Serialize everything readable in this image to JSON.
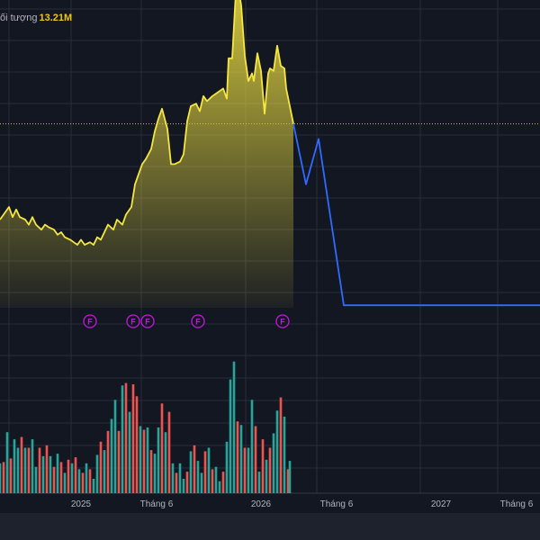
{
  "legend": {
    "label": "ối tượng",
    "value": "13.21M"
  },
  "colors": {
    "background": "#131722",
    "grid": "#2a2e39",
    "price_line": "#f5e642",
    "forecast_line": "#2f6bff",
    "marker": "#c21bd8",
    "vol_up": "#26a69a",
    "vol_down": "#ef5350",
    "reference_line": "#d8c23a",
    "axis_text": "#b2b5be"
  },
  "chart_data": {
    "type": "area",
    "title": "",
    "xlabel": "",
    "ylabel": "",
    "x_range": [
      2024.55,
      2027.55
    ],
    "price_range": [
      0,
      100
    ],
    "volume_range": [
      0,
      100
    ],
    "x_ticks": [
      {
        "label": "2025",
        "x": 2025.0
      },
      {
        "label": "Tháng 6",
        "x": 2025.42
      },
      {
        "label": "2026",
        "x": 2026.0
      },
      {
        "label": "Tháng 6",
        "x": 2026.42
      },
      {
        "label": "2027",
        "x": 2027.0
      },
      {
        "label": "Tháng 6",
        "x": 2027.42
      }
    ],
    "price_series": [
      [
        2024.55,
        35
      ],
      [
        2024.57,
        37
      ],
      [
        2024.6,
        40
      ],
      [
        2024.62,
        36
      ],
      [
        2024.64,
        39
      ],
      [
        2024.66,
        36
      ],
      [
        2024.69,
        35
      ],
      [
        2024.71,
        33
      ],
      [
        2024.73,
        36
      ],
      [
        2024.75,
        33
      ],
      [
        2024.78,
        31
      ],
      [
        2024.8,
        33
      ],
      [
        2024.82,
        32
      ],
      [
        2024.85,
        31
      ],
      [
        2024.87,
        29
      ],
      [
        2024.89,
        30
      ],
      [
        2024.91,
        28
      ],
      [
        2024.94,
        27
      ],
      [
        2024.96,
        26
      ],
      [
        2024.98,
        25
      ],
      [
        2025.0,
        27
      ],
      [
        2025.02,
        25
      ],
      [
        2025.05,
        26
      ],
      [
        2025.07,
        25
      ],
      [
        2025.09,
        28
      ],
      [
        2025.11,
        27
      ],
      [
        2025.13,
        30
      ],
      [
        2025.15,
        33
      ],
      [
        2025.18,
        31
      ],
      [
        2025.2,
        35
      ],
      [
        2025.23,
        33
      ],
      [
        2025.25,
        37
      ],
      [
        2025.28,
        40
      ],
      [
        2025.3,
        49
      ],
      [
        2025.32,
        53
      ],
      [
        2025.34,
        57
      ],
      [
        2025.36,
        59
      ],
      [
        2025.39,
        63
      ],
      [
        2025.41,
        70
      ],
      [
        2025.43,
        75
      ],
      [
        2025.45,
        79
      ],
      [
        2025.48,
        71
      ],
      [
        2025.5,
        57
      ],
      [
        2025.52,
        57
      ],
      [
        2025.55,
        58
      ],
      [
        2025.57,
        61
      ],
      [
        2025.59,
        74
      ],
      [
        2025.61,
        80
      ],
      [
        2025.64,
        81
      ],
      [
        2025.66,
        78
      ],
      [
        2025.68,
        84
      ],
      [
        2025.7,
        82
      ],
      [
        2025.73,
        84
      ],
      [
        2025.75,
        85
      ],
      [
        2025.77,
        86
      ],
      [
        2025.79,
        87
      ],
      [
        2025.81,
        83
      ],
      [
        2025.82,
        99
      ],
      [
        2025.84,
        99
      ],
      [
        2025.86,
        125
      ],
      [
        2025.87,
        129
      ],
      [
        2025.89,
        120
      ],
      [
        2025.91,
        100
      ],
      [
        2025.93,
        90
      ],
      [
        2025.95,
        93
      ],
      [
        2025.96,
        90
      ],
      [
        2025.98,
        101
      ],
      [
        2026.0,
        94
      ],
      [
        2026.02,
        77
      ],
      [
        2026.04,
        93
      ],
      [
        2026.05,
        95
      ],
      [
        2026.07,
        94
      ],
      [
        2026.09,
        104
      ],
      [
        2026.11,
        96
      ],
      [
        2026.13,
        95
      ],
      [
        2026.14,
        87
      ],
      [
        2026.18,
        73
      ]
    ],
    "forecast_series": [
      [
        2026.18,
        73
      ],
      [
        2026.25,
        49
      ],
      [
        2026.32,
        67
      ],
      [
        2026.46,
        1
      ],
      [
        2027.55,
        1
      ]
    ],
    "reference_value": 73,
    "fill_baseline": 0,
    "markers": [
      {
        "label": "F",
        "x": 2025.05
      },
      {
        "label": "F",
        "x": 2025.29
      },
      {
        "label": "F",
        "x": 2025.37
      },
      {
        "label": "F",
        "x": 2025.65
      },
      {
        "label": "F",
        "x": 2026.12
      }
    ],
    "volume_series": [
      [
        2024.55,
        25,
        "up"
      ],
      [
        2024.57,
        26,
        "down"
      ],
      [
        2024.59,
        51,
        "up"
      ],
      [
        2024.61,
        29,
        "down"
      ],
      [
        2024.63,
        45,
        "up"
      ],
      [
        2024.65,
        38,
        "up"
      ],
      [
        2024.67,
        47,
        "down"
      ],
      [
        2024.69,
        38,
        "up"
      ],
      [
        2024.71,
        38,
        "down"
      ],
      [
        2024.73,
        45,
        "up"
      ],
      [
        2024.75,
        22,
        "up"
      ],
      [
        2024.77,
        38,
        "down"
      ],
      [
        2024.79,
        31,
        "up"
      ],
      [
        2024.81,
        40,
        "down"
      ],
      [
        2024.83,
        31,
        "up"
      ],
      [
        2024.85,
        22,
        "down"
      ],
      [
        2024.87,
        33,
        "up"
      ],
      [
        2024.89,
        26,
        "down"
      ],
      [
        2024.91,
        17,
        "up"
      ],
      [
        2024.93,
        28,
        "down"
      ],
      [
        2024.95,
        25,
        "up"
      ],
      [
        2024.97,
        30,
        "down"
      ],
      [
        2024.99,
        20,
        "up"
      ],
      [
        2025.01,
        17,
        "down"
      ],
      [
        2025.03,
        25,
        "up"
      ],
      [
        2025.05,
        20,
        "down"
      ],
      [
        2025.07,
        12,
        "up"
      ],
      [
        2025.09,
        32,
        "up"
      ],
      [
        2025.11,
        43,
        "down"
      ],
      [
        2025.13,
        36,
        "up"
      ],
      [
        2025.15,
        52,
        "down"
      ],
      [
        2025.17,
        62,
        "up"
      ],
      [
        2025.19,
        78,
        "up"
      ],
      [
        2025.21,
        52,
        "down"
      ],
      [
        2025.23,
        90,
        "up"
      ],
      [
        2025.25,
        92,
        "down"
      ],
      [
        2025.27,
        68,
        "up"
      ],
      [
        2025.29,
        91,
        "down"
      ],
      [
        2025.31,
        81,
        "down"
      ],
      [
        2025.33,
        56,
        "up"
      ],
      [
        2025.35,
        53,
        "down"
      ],
      [
        2025.37,
        55,
        "up"
      ],
      [
        2025.39,
        36,
        "down"
      ],
      [
        2025.41,
        33,
        "up"
      ],
      [
        2025.43,
        55,
        "up"
      ],
      [
        2025.45,
        75,
        "down"
      ],
      [
        2025.47,
        51,
        "up"
      ],
      [
        2025.49,
        68,
        "down"
      ],
      [
        2025.51,
        25,
        "up"
      ],
      [
        2025.53,
        17,
        "down"
      ],
      [
        2025.55,
        25,
        "up"
      ],
      [
        2025.57,
        12,
        "up"
      ],
      [
        2025.59,
        18,
        "down"
      ],
      [
        2025.61,
        35,
        "up"
      ],
      [
        2025.63,
        40,
        "down"
      ],
      [
        2025.65,
        27,
        "up"
      ],
      [
        2025.67,
        17,
        "up"
      ],
      [
        2025.69,
        35,
        "down"
      ],
      [
        2025.71,
        38,
        "up"
      ],
      [
        2025.73,
        20,
        "down"
      ],
      [
        2025.75,
        22,
        "up"
      ],
      [
        2025.77,
        10,
        "up"
      ],
      [
        2025.79,
        18,
        "down"
      ],
      [
        2025.81,
        43,
        "up"
      ],
      [
        2025.83,
        95,
        "up"
      ],
      [
        2025.85,
        110,
        "up"
      ],
      [
        2025.87,
        60,
        "down"
      ],
      [
        2025.89,
        57,
        "up"
      ],
      [
        2025.91,
        38,
        "down"
      ],
      [
        2025.93,
        38,
        "up"
      ],
      [
        2025.95,
        78,
        "up"
      ],
      [
        2025.97,
        56,
        "down"
      ],
      [
        2025.99,
        18,
        "up"
      ],
      [
        2026.01,
        45,
        "down"
      ],
      [
        2026.03,
        28,
        "up"
      ],
      [
        2026.05,
        38,
        "down"
      ],
      [
        2026.07,
        50,
        "up"
      ],
      [
        2026.09,
        69,
        "up"
      ],
      [
        2026.11,
        80,
        "down"
      ],
      [
        2026.13,
        64,
        "up"
      ],
      [
        2026.15,
        20,
        "down"
      ],
      [
        2026.16,
        27,
        "up"
      ]
    ]
  }
}
